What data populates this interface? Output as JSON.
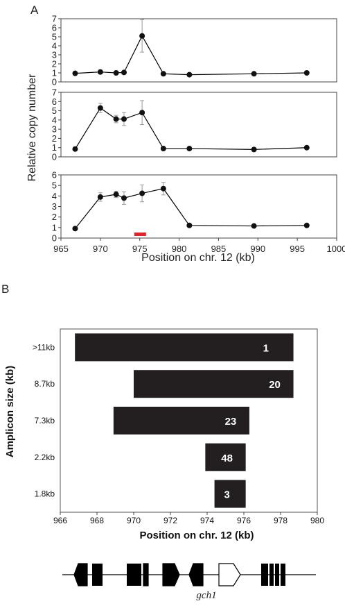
{
  "chart_data": [
    {
      "type": "line",
      "panel_label": "A",
      "xlabel": "Position on chr. 12 (kb)",
      "ylabel": "Relative copy number",
      "xlim": [
        965,
        1000
      ],
      "x_ticks": [
        "965",
        "970",
        "975",
        "980",
        "985",
        "990",
        "995",
        "1000"
      ],
      "ylim": [
        0,
        7
      ],
      "panels": [
        {
          "y_ticks": [
            "0",
            "1",
            "2",
            "3",
            "4",
            "5",
            "6",
            "7"
          ],
          "x": [
            966.8,
            970.0,
            972.0,
            973.0,
            975.3,
            978.0,
            981.3,
            989.5,
            996.2
          ],
          "y": [
            0.95,
            1.1,
            1.0,
            1.05,
            5.1,
            0.9,
            0.8,
            0.9,
            1.0
          ],
          "err": [
            0.1,
            0.2,
            0.1,
            0.15,
            1.8,
            0.1,
            0.1,
            0.1,
            0.1
          ]
        },
        {
          "y_ticks": [
            "0",
            "1",
            "2",
            "3",
            "4",
            "5",
            "6",
            "7"
          ],
          "x": [
            966.8,
            970.0,
            972.0,
            973.0,
            975.3,
            978.0,
            981.3,
            989.5,
            996.2
          ],
          "y": [
            0.85,
            5.3,
            4.1,
            4.1,
            4.8,
            0.9,
            0.9,
            0.8,
            1.0
          ],
          "err": [
            0.1,
            0.5,
            0.4,
            0.7,
            1.3,
            0.1,
            0.1,
            0.1,
            0.1
          ]
        },
        {
          "y_ticks": [
            "0",
            "1",
            "2",
            "3",
            "4",
            "5",
            "6"
          ],
          "x": [
            966.8,
            970.0,
            972.0,
            973.0,
            975.3,
            978.0,
            981.3,
            989.5,
            996.2
          ],
          "y": [
            0.9,
            3.9,
            4.15,
            3.8,
            4.25,
            4.7,
            1.2,
            1.15,
            1.2
          ],
          "err": [
            0.1,
            0.4,
            0.3,
            0.6,
            0.8,
            0.6,
            0.1,
            0.1,
            0.1
          ],
          "ylim": [
            0,
            6
          ],
          "highlight_range": [
            974.3,
            975.8
          ],
          "highlight_color": "#e0242c"
        }
      ],
      "line_color": "#000000",
      "marker": "filled-circle",
      "grid": false
    },
    {
      "type": "bar",
      "orientation": "horizontal-range",
      "panel_label": "B",
      "xlabel": "Position on chr. 12 (kb)",
      "ylabel": "Amplicon size (kb)",
      "xlim": [
        966,
        980
      ],
      "x_ticks": [
        "966",
        "968",
        "970",
        "972",
        "974",
        "976",
        "978",
        "980"
      ],
      "categories": [
        ">11kb",
        "8.7kb",
        "7.3kb",
        "2.2kb",
        "1.8kb"
      ],
      "ranges": [
        [
          966.8,
          978.7
        ],
        [
          970.0,
          978.7
        ],
        [
          968.9,
          976.3
        ],
        [
          973.9,
          976.1
        ],
        [
          974.4,
          976.1
        ]
      ],
      "values": [
        "1",
        "20",
        "23",
        "48",
        "3"
      ],
      "bar_color": "#231f20",
      "label_color": "#ffffff"
    }
  ],
  "gene_map": {
    "label": "gch1",
    "feature_color": "#000000",
    "highlight_feature": "white-arrow"
  }
}
